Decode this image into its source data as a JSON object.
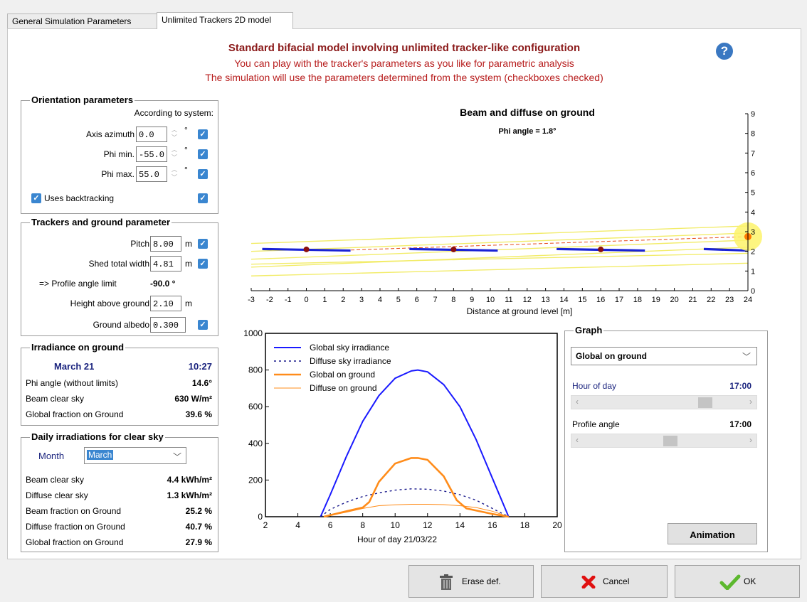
{
  "tabs": [
    "General Simulation Parameters",
    "Unlimited Trackers 2D model"
  ],
  "header": {
    "title": "Standard bifacial model involving unlimited tracker-like configuration",
    "line2": "You can play with the tracker's parameters as you like for parametric analysis",
    "line3": "The simulation will use the parameters determined from the system (checkboxes checked)",
    "help": "?"
  },
  "orientation": {
    "title": "Orientation parameters",
    "according": "According to system:",
    "axis_label": "Axis azimuth",
    "axis_value": "0.0",
    "phimin_label": "Phi min.",
    "phimin_value": "-55.0",
    "phimax_label": "Phi max.",
    "phimax_value": "55.0",
    "deg": "°",
    "backtracking": "Uses backtracking"
  },
  "trackers": {
    "title": "Trackers and ground parameter",
    "pitch_label": "Pitch",
    "pitch_value": "8.00",
    "width_label": "Shed total width",
    "width_value": "4.81",
    "profile_label": "=> Profile angle limit",
    "profile_value": "-90.0 °",
    "height_label": "Height above ground",
    "height_value": "2.10",
    "albedo_label": "Ground albedo",
    "albedo_value": "0.300",
    "unit_m": "m"
  },
  "irradiance": {
    "title": "Irradiance on ground",
    "date": "March 21",
    "time": "10:27",
    "phi_label": "Phi angle (without limits)",
    "phi_value": "14.6°",
    "beam_label": "Beam clear sky",
    "beam_value": "630 W/m²",
    "global_label": "Global fraction on Ground",
    "global_value": "39.6 %"
  },
  "daily": {
    "title": "Daily irradiations for clear sky",
    "month_label": "Month",
    "month_value": "March",
    "rows": [
      {
        "label": "Beam clear sky",
        "value": "4.4 kWh/m²"
      },
      {
        "label": "Diffuse clear sky",
        "value": "1.3 kWh/m²"
      },
      {
        "label": "Beam fraction on Ground",
        "value": "25.2 %"
      },
      {
        "label": "Diffuse fraction on Ground",
        "value": "40.7 %"
      },
      {
        "label": "Global fraction on Ground",
        "value": "27.9 %"
      }
    ]
  },
  "ground_chart": {
    "title": "Beam and diffuse on ground",
    "subtitle": "Phi angle = 1.8°",
    "xlabel": "Distance at ground level [m]"
  },
  "graph": {
    "title": "Graph",
    "selected": "Global on ground",
    "hour_label": "Hour of day",
    "hour_value": "17:00",
    "profile_label": "Profile angle",
    "profile_value": "17:00",
    "hour_slider": 0.78,
    "profile_slider": 0.54,
    "animation": "Animation"
  },
  "buttons": {
    "erase": "Erase def.",
    "cancel": "Cancel",
    "ok": "OK"
  },
  "chart_data": [
    {
      "type": "scatter",
      "title": "Beam and diffuse on ground",
      "subtitle": "Phi angle = 1.8°",
      "xlabel": "Distance at ground level [m]",
      "xlim": [
        -3,
        24
      ],
      "ylim": [
        0,
        9
      ],
      "x_ticks": [
        -3,
        -2,
        -1,
        0,
        1,
        2,
        3,
        4,
        5,
        6,
        7,
        8,
        9,
        10,
        11,
        12,
        13,
        14,
        15,
        16,
        17,
        18,
        19,
        20,
        21,
        22,
        23,
        24
      ],
      "y_ticks": [
        0,
        1,
        2,
        3,
        4,
        5,
        6,
        7,
        8,
        9
      ],
      "trackers": [
        {
          "center": 0,
          "height": 2.1,
          "half_width": 2.4
        },
        {
          "center": 8,
          "height": 2.1,
          "half_width": 2.4
        },
        {
          "center": 16,
          "height": 2.1,
          "half_width": 2.4
        },
        {
          "center": 24,
          "height": 2.1,
          "half_width": 2.4
        }
      ],
      "sun": {
        "x": 24,
        "y": 2.75
      }
    },
    {
      "type": "line",
      "xlabel": "Hour of day 21/03/22",
      "xlim": [
        2,
        20
      ],
      "ylim": [
        0,
        1000
      ],
      "x_ticks": [
        2,
        4,
        6,
        8,
        10,
        12,
        14,
        16,
        18,
        20
      ],
      "y_ticks": [
        0,
        200,
        400,
        600,
        800,
        1000
      ],
      "series": [
        {
          "name": "Global sky irradiance",
          "color": "#1a1aff",
          "style": "solid",
          "x": [
            5.4,
            6,
            7,
            8,
            9,
            10,
            11,
            11.4,
            12,
            13,
            14,
            15,
            16,
            17
          ],
          "y": [
            0,
            120,
            330,
            520,
            660,
            755,
            795,
            800,
            790,
            720,
            600,
            420,
            210,
            0
          ]
        },
        {
          "name": "Diffuse sky irradiance",
          "color": "#1a1a8c",
          "style": "dotted",
          "x": [
            5.4,
            6,
            7,
            8,
            9,
            10,
            11,
            12,
            13,
            14,
            15,
            16,
            17
          ],
          "y": [
            0,
            40,
            80,
            110,
            130,
            145,
            152,
            150,
            140,
            120,
            90,
            45,
            0
          ]
        },
        {
          "name": "Global on ground",
          "color": "#ff8c1a",
          "style": "solid",
          "x": [
            5.6,
            7,
            8,
            8.4,
            9,
            10,
            11,
            11.4,
            12,
            13,
            13.8,
            14.4,
            16,
            17
          ],
          "y": [
            0,
            30,
            50,
            80,
            190,
            290,
            320,
            320,
            310,
            220,
            90,
            45,
            15,
            0
          ]
        },
        {
          "name": "Diffuse on ground",
          "color": "#ff8c1a",
          "style": "thin",
          "x": [
            5.6,
            7,
            8,
            9,
            10,
            11,
            12,
            13,
            14,
            15,
            16,
            17
          ],
          "y": [
            0,
            25,
            45,
            60,
            65,
            68,
            68,
            66,
            60,
            50,
            30,
            0
          ]
        }
      ]
    }
  ]
}
